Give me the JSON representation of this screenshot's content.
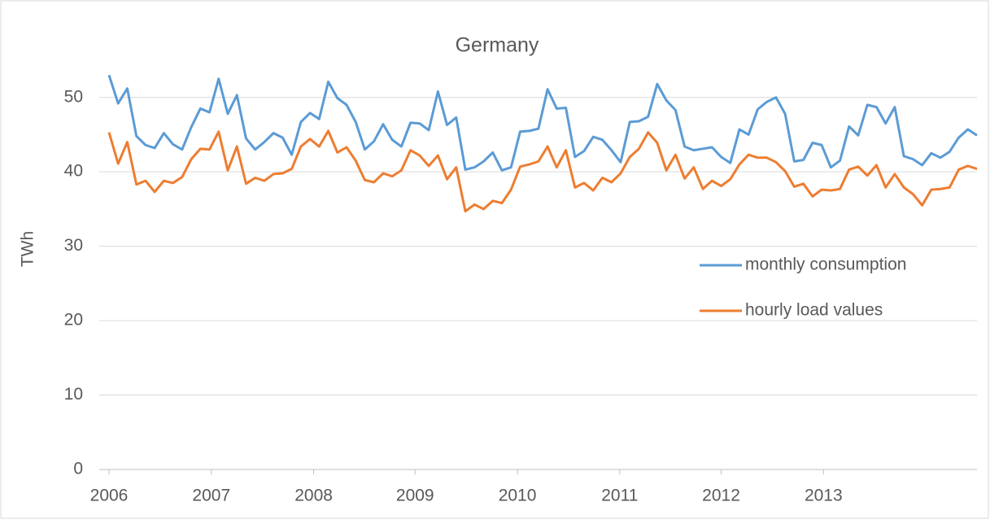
{
  "chart_data": {
    "type": "line",
    "title": "Germany",
    "y_label": "TWh",
    "x": [
      0,
      1,
      2,
      3,
      4,
      5,
      6,
      7,
      8,
      9,
      10,
      11,
      12,
      13,
      14,
      15,
      16,
      17,
      18,
      19,
      20,
      21,
      22,
      23,
      24,
      25,
      26,
      27,
      28,
      29,
      30,
      31,
      32,
      33,
      34,
      35,
      36,
      37,
      38,
      39,
      40,
      41,
      42,
      43,
      44,
      45,
      46,
      47,
      48,
      49,
      50,
      51,
      52,
      53,
      54,
      55,
      56,
      57,
      58,
      59,
      60,
      61,
      62,
      63,
      64,
      65,
      66,
      67,
      68,
      69,
      70,
      71,
      72,
      73,
      74,
      75,
      76,
      77,
      78,
      79,
      80,
      81,
      82,
      83,
      84,
      85,
      86,
      87,
      88,
      89,
      90,
      91,
      92,
      93,
      94,
      95
    ],
    "xlim": [
      0,
      95
    ],
    "xticks": [
      {
        "value": 0,
        "label": "2006"
      },
      {
        "value": 11.2,
        "label": "2007"
      },
      {
        "value": 22.4,
        "label": "2008"
      },
      {
        "value": 33.5,
        "label": "2009"
      },
      {
        "value": 44.7,
        "label": "2010"
      },
      {
        "value": 55.9,
        "label": "2011"
      },
      {
        "value": 67,
        "label": "2012"
      },
      {
        "value": 78.2,
        "label": "2013"
      }
    ],
    "ylim": [
      0,
      55
    ],
    "yticks": [
      0,
      10,
      20,
      30,
      40,
      50
    ],
    "grid": true,
    "legend": "right",
    "series": [
      {
        "name": "monthly consumption",
        "color": "#5b9bd5",
        "values": [
          53,
          49.2,
          51.2,
          44.8,
          43.6,
          43.2,
          45.2,
          43.7,
          43,
          46,
          48.5,
          48,
          52.5,
          47.8,
          50.3,
          44.5,
          43,
          44,
          45.2,
          44.6,
          42.3,
          46.7,
          47.9,
          47.1,
          52.1,
          49.9,
          49,
          46.7,
          43,
          44.1,
          46.4,
          44.3,
          43.4,
          46.6,
          46.5,
          45.6,
          50.8,
          46.3,
          47.3,
          40.3,
          40.6,
          41.4,
          42.6,
          40.2,
          40.6,
          45.4,
          45.5,
          45.8,
          51.1,
          48.5,
          48.6,
          42,
          42.8,
          44.7,
          44.3,
          42.9,
          41.3,
          46.7,
          46.8,
          47.4,
          51.8,
          49.6,
          48.3,
          43.4,
          42.9,
          43.1,
          43.3,
          42,
          41.2,
          45.7,
          45,
          48.4,
          49.4,
          50,
          47.8,
          41.4,
          41.6,
          43.9,
          43.6,
          40.6,
          41.5,
          46.1,
          44.9,
          49,
          48.7,
          46.5,
          48.7,
          42.1,
          41.7,
          40.9,
          42.5,
          41.9,
          42.7,
          44.6,
          45.7,
          44.9
        ]
      },
      {
        "name": "hourly load values",
        "color": "#ed7d31",
        "values": [
          45.3,
          41.1,
          44,
          38.3,
          38.8,
          37.3,
          38.8,
          38.5,
          39.3,
          41.7,
          43.1,
          43,
          45.4,
          40.2,
          43.4,
          38.4,
          39.2,
          38.8,
          39.7,
          39.8,
          40.4,
          43.4,
          44.4,
          43.4,
          45.5,
          42.6,
          43.3,
          41.5,
          38.9,
          38.6,
          39.8,
          39.4,
          40.2,
          42.9,
          42.2,
          40.8,
          42.2,
          39,
          40.6,
          34.7,
          35.6,
          35,
          36.1,
          35.8,
          37.6,
          40.7,
          41,
          41.4,
          43.4,
          40.6,
          42.9,
          37.9,
          38.5,
          37.5,
          39.2,
          38.6,
          39.8,
          42,
          43.1,
          45.3,
          43.9,
          40.2,
          42.3,
          39.1,
          40.6,
          37.7,
          38.8,
          38.1,
          39,
          41,
          42.3,
          41.9,
          41.9,
          41.3,
          40.1,
          38,
          38.4,
          36.7,
          37.6,
          37.5,
          37.7,
          40.3,
          40.7,
          39.5,
          40.9,
          37.9,
          39.7,
          37.9,
          37,
          35.5,
          37.6,
          37.7,
          37.9,
          40.3,
          40.8,
          40.4
        ]
      }
    ]
  }
}
